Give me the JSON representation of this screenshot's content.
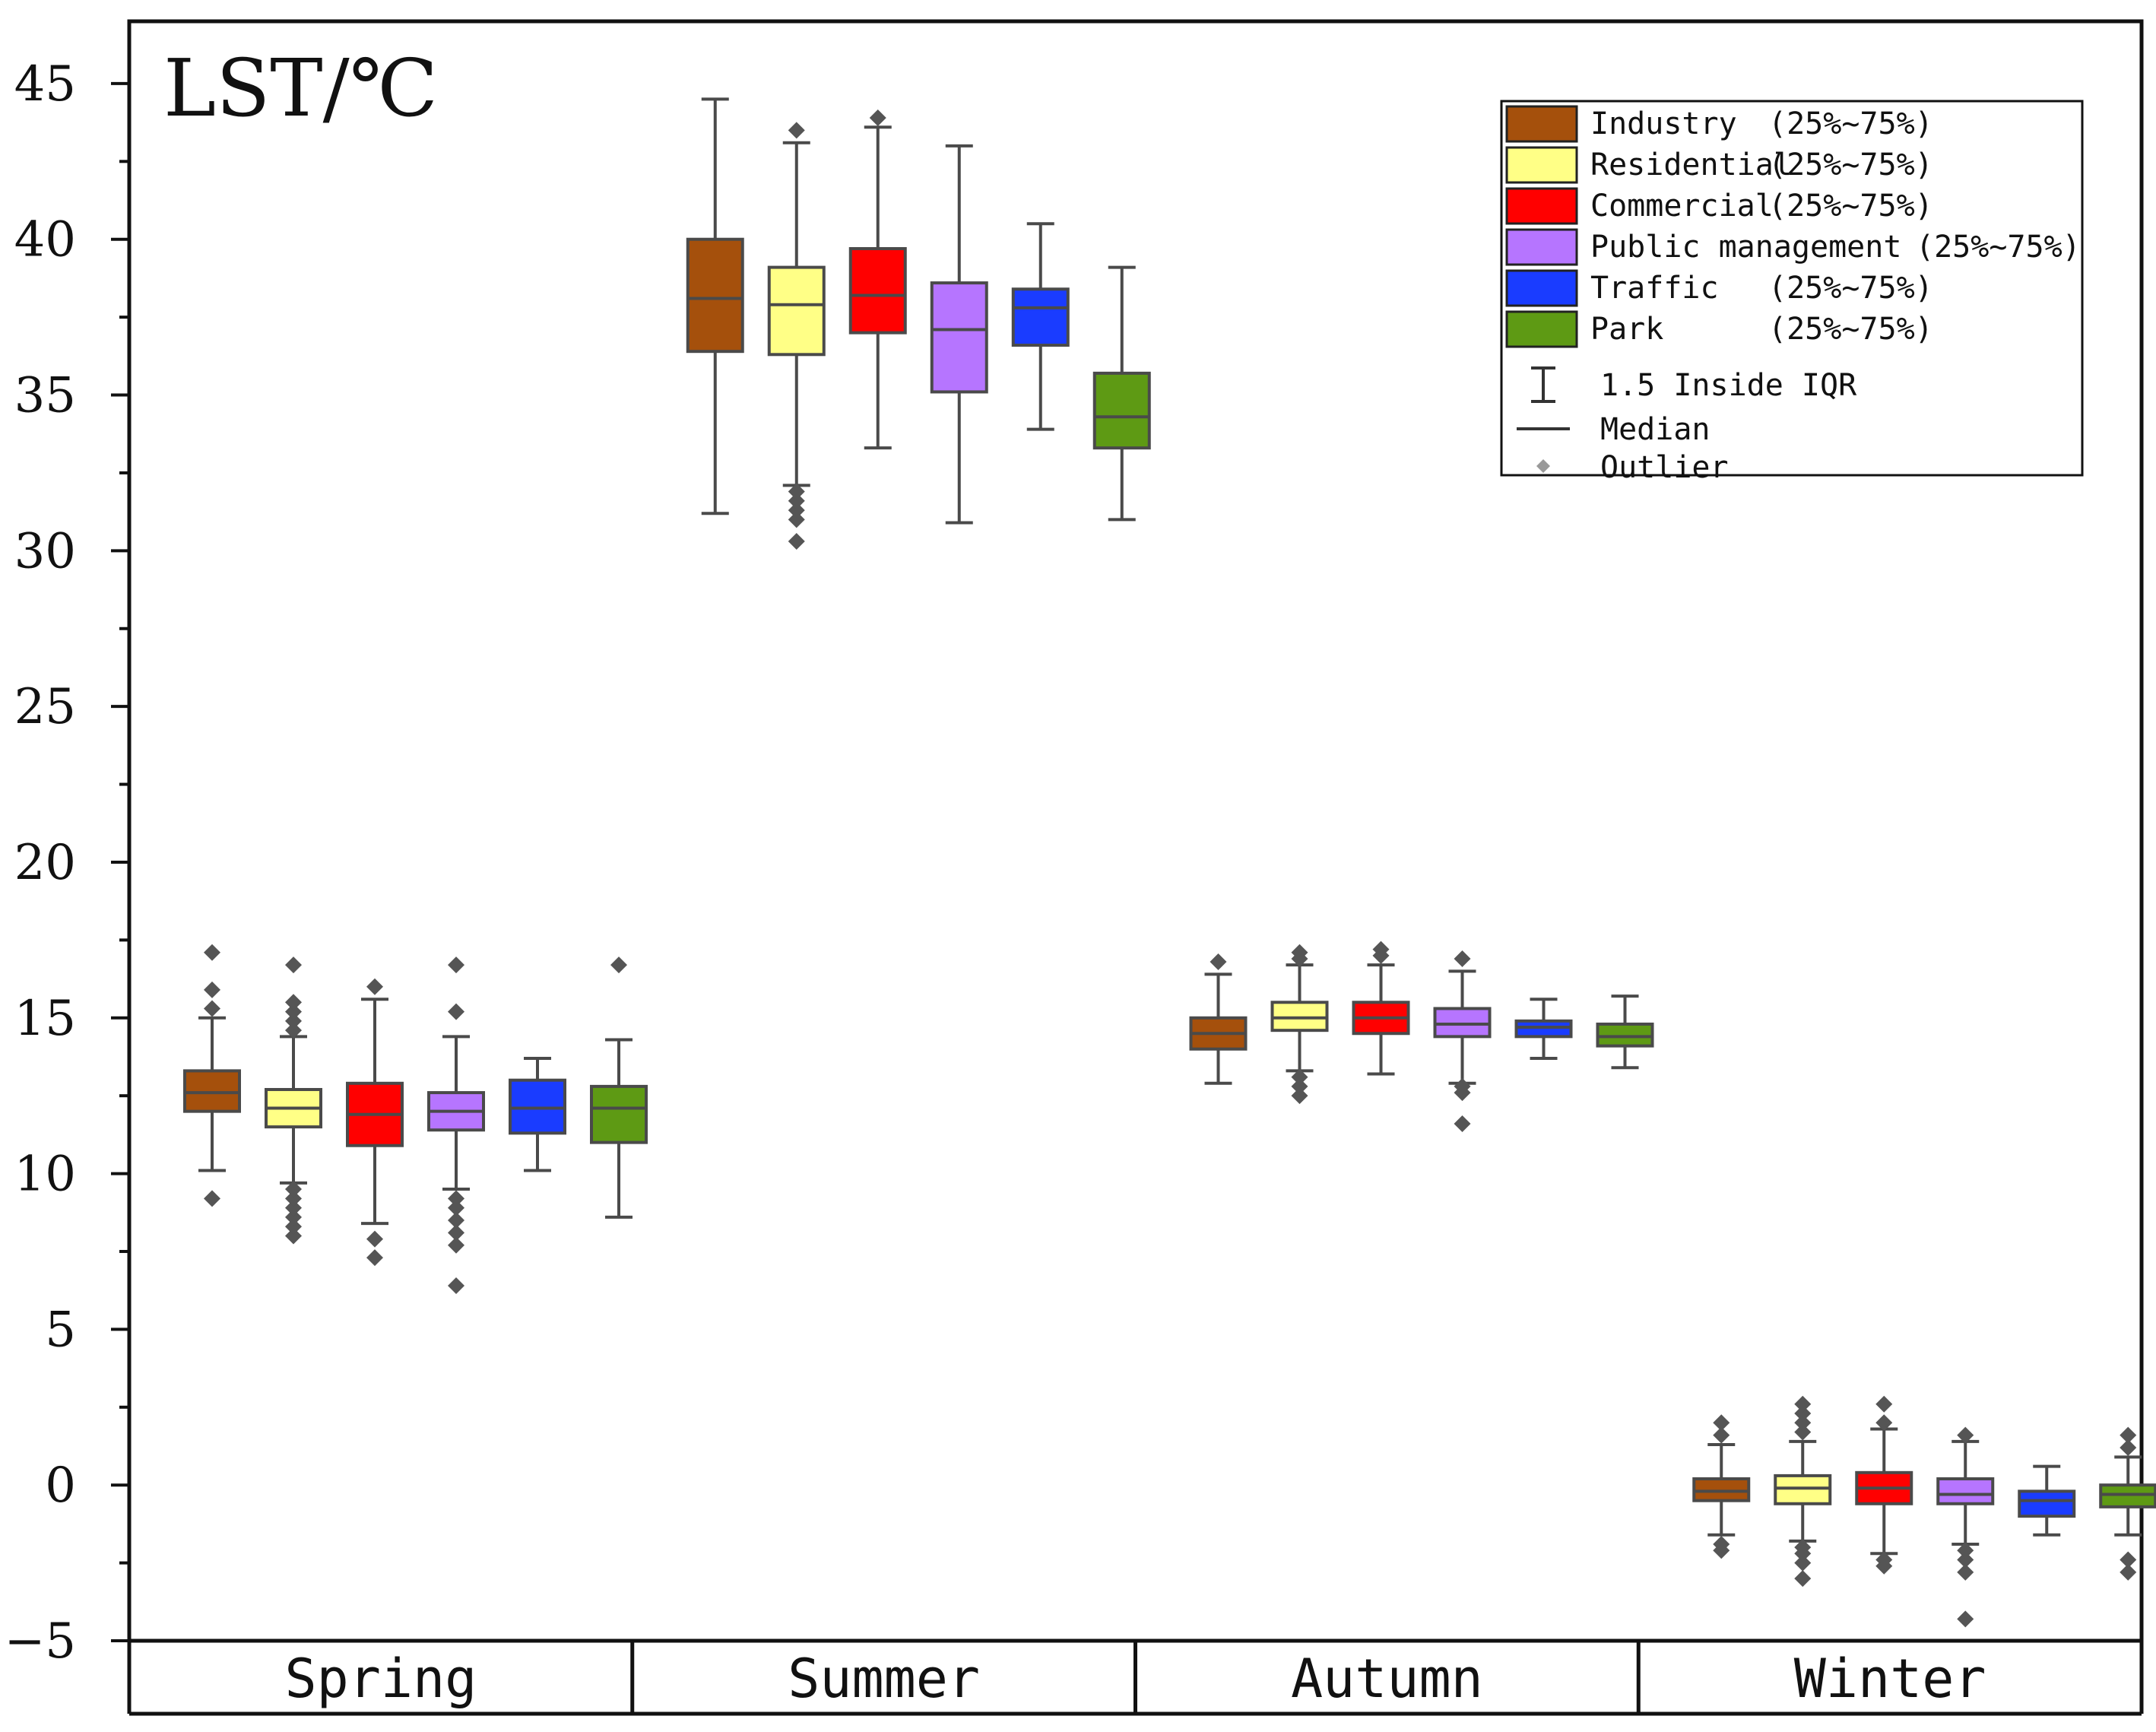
{
  "chart_data": {
    "type": "box",
    "ylabel": "LST/℃",
    "ylim": [
      -5,
      47
    ],
    "yticks": [
      -5,
      0,
      5,
      10,
      15,
      20,
      25,
      30,
      35,
      40,
      45
    ],
    "categories": [
      "Spring",
      "Summer",
      "Autumn",
      "Winter"
    ],
    "series": [
      {
        "name": "Industry",
        "color": "#a5500c",
        "stats": [
          {
            "min": 10.1,
            "q1": 12.0,
            "median": 12.6,
            "q3": 13.3,
            "max": 15.0,
            "outliers": [
              9.2,
              15.3,
              15.9,
              17.1
            ]
          },
          {
            "min": 31.2,
            "q1": 36.4,
            "median": 38.1,
            "q3": 40.0,
            "max": 44.5,
            "outliers": []
          },
          {
            "min": 12.9,
            "q1": 14.0,
            "median": 14.5,
            "q3": 15.0,
            "max": 16.4,
            "outliers": [
              16.8
            ]
          },
          {
            "min": -1.6,
            "q1": -0.5,
            "median": -0.2,
            "q3": 0.2,
            "max": 1.3,
            "outliers": [
              -2.1,
              -1.9,
              1.6,
              2.0
            ]
          }
        ]
      },
      {
        "name": "Residential",
        "color": "#ffff86",
        "stats": [
          {
            "min": 9.7,
            "q1": 11.5,
            "median": 12.1,
            "q3": 12.7,
            "max": 14.4,
            "outliers": [
              8.0,
              8.3,
              8.6,
              8.9,
              9.2,
              9.5,
              14.6,
              14.9,
              15.2,
              15.5,
              16.7
            ]
          },
          {
            "min": 32.1,
            "q1": 36.3,
            "median": 37.9,
            "q3": 39.1,
            "max": 43.1,
            "outliers": [
              30.3,
              31.0,
              31.3,
              31.6,
              31.9,
              43.5
            ]
          },
          {
            "min": 13.3,
            "q1": 14.6,
            "median": 15.0,
            "q3": 15.5,
            "max": 16.7,
            "outliers": [
              12.5,
              12.8,
              13.1,
              16.9,
              17.1
            ]
          },
          {
            "min": -1.8,
            "q1": -0.6,
            "median": -0.1,
            "q3": 0.3,
            "max": 1.4,
            "outliers": [
              -3.0,
              -2.5,
              -2.2,
              -2.0,
              1.7,
              2.0,
              2.3,
              2.6
            ]
          }
        ]
      },
      {
        "name": "Commercial",
        "color": "#ff0000",
        "stats": [
          {
            "min": 8.4,
            "q1": 10.9,
            "median": 11.9,
            "q3": 12.9,
            "max": 15.6,
            "outliers": [
              7.3,
              7.9,
              16.0
            ]
          },
          {
            "min": 33.3,
            "q1": 37.0,
            "median": 38.2,
            "q3": 39.7,
            "max": 43.6,
            "outliers": [
              43.9
            ]
          },
          {
            "min": 13.2,
            "q1": 14.5,
            "median": 15.0,
            "q3": 15.5,
            "max": 16.7,
            "outliers": [
              17.0,
              17.2
            ]
          },
          {
            "min": -2.2,
            "q1": -0.6,
            "median": -0.1,
            "q3": 0.4,
            "max": 1.8,
            "outliers": [
              -2.6,
              -2.4,
              2.0,
              2.6
            ]
          }
        ]
      },
      {
        "name": "Public management",
        "color": "#b675ff",
        "stats": [
          {
            "min": 9.5,
            "q1": 11.4,
            "median": 12.0,
            "q3": 12.6,
            "max": 14.4,
            "outliers": [
              6.4,
              7.7,
              8.1,
              8.5,
              8.9,
              9.2,
              15.2,
              16.7
            ]
          },
          {
            "min": 30.9,
            "q1": 35.1,
            "median": 37.1,
            "q3": 38.6,
            "max": 43.0,
            "outliers": []
          },
          {
            "min": 12.9,
            "q1": 14.4,
            "median": 14.8,
            "q3": 15.3,
            "max": 16.5,
            "outliers": [
              11.6,
              12.6,
              12.8,
              16.9
            ]
          },
          {
            "min": -1.9,
            "q1": -0.6,
            "median": -0.3,
            "q3": 0.2,
            "max": 1.4,
            "outliers": [
              -4.3,
              -2.8,
              -2.4,
              -2.1,
              1.6
            ]
          }
        ]
      },
      {
        "name": "Traffic",
        "color": "#1a3cff",
        "stats": [
          {
            "min": 10.1,
            "q1": 11.3,
            "median": 12.1,
            "q3": 13.0,
            "max": 13.7,
            "outliers": []
          },
          {
            "min": 33.9,
            "q1": 36.6,
            "median": 37.8,
            "q3": 38.4,
            "max": 40.5,
            "outliers": []
          },
          {
            "min": 13.7,
            "q1": 14.4,
            "median": 14.7,
            "q3": 14.9,
            "max": 15.6,
            "outliers": []
          },
          {
            "min": -1.6,
            "q1": -1.0,
            "median": -0.5,
            "q3": -0.2,
            "max": 0.6,
            "outliers": []
          }
        ]
      },
      {
        "name": "Park",
        "color": "#5e9a14",
        "stats": [
          {
            "min": 8.6,
            "q1": 11.0,
            "median": 12.1,
            "q3": 12.8,
            "max": 14.3,
            "outliers": [
              16.7
            ]
          },
          {
            "min": 31.0,
            "q1": 33.3,
            "median": 34.3,
            "q3": 35.7,
            "max": 39.1,
            "outliers": []
          },
          {
            "min": 13.4,
            "q1": 14.1,
            "median": 14.4,
            "q3": 14.8,
            "max": 15.7,
            "outliers": []
          },
          {
            "min": -1.6,
            "q1": -0.7,
            "median": -0.3,
            "q3": 0.0,
            "max": 0.9,
            "outliers": [
              -2.8,
              -2.4,
              1.2,
              1.6
            ]
          }
        ]
      }
    ],
    "legend": {
      "position": "top-right",
      "range_label": "(25%~75%)",
      "items": [
        "Industry",
        "Residential",
        "Commercial",
        "Public management",
        "Traffic",
        "Park"
      ],
      "whisker_label": "1.5 Inside IQR",
      "median_label": "Median",
      "outlier_label": "Outlier"
    }
  }
}
